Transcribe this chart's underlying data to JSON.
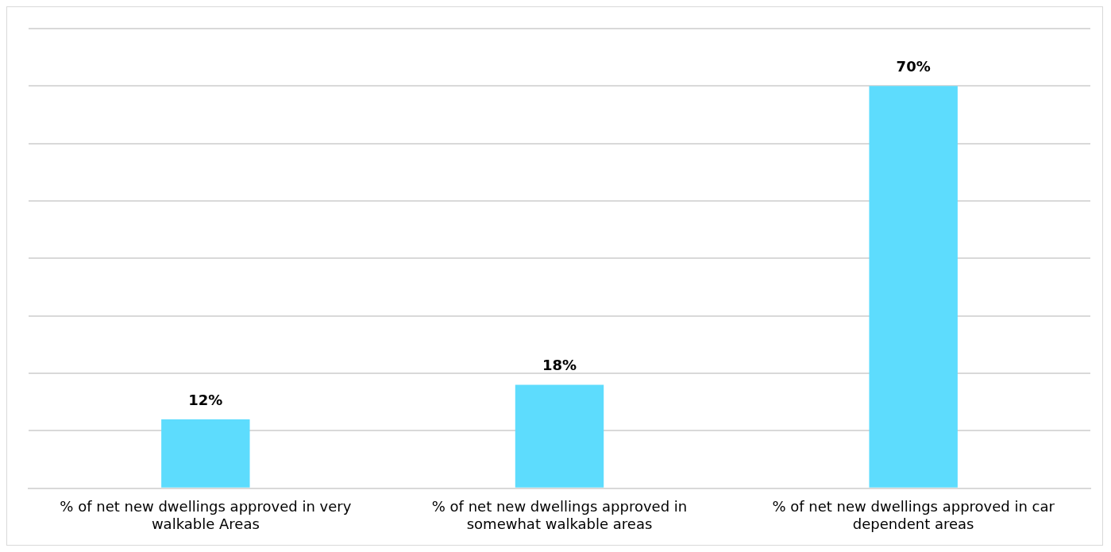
{
  "chart_data": {
    "type": "bar",
    "categories": [
      "% of net new dwellings approved in very walkable Areas",
      "% of net new dwellings approved in somewhat walkable areas",
      "% of net new dwellings approved in car dependent areas"
    ],
    "values": [
      12,
      18,
      70
    ],
    "color": "#5ddcfd",
    "value_labels": [
      "12%",
      "18%",
      "70%"
    ],
    "ylim": [
      0,
      80
    ],
    "yticks": [
      {
        "value": 0,
        "label": null
      },
      {
        "value": 10,
        "label": null
      },
      {
        "value": 20,
        "label": null
      },
      {
        "value": 30,
        "label": null
      },
      {
        "value": 40,
        "label": null
      },
      {
        "value": 50,
        "label": null
      },
      {
        "value": 60,
        "label": null
      },
      {
        "value": 70,
        "label": null
      },
      {
        "value": 80,
        "label": null
      }
    ],
    "grid": "y",
    "tick_labels": "x",
    "legend": false
  }
}
